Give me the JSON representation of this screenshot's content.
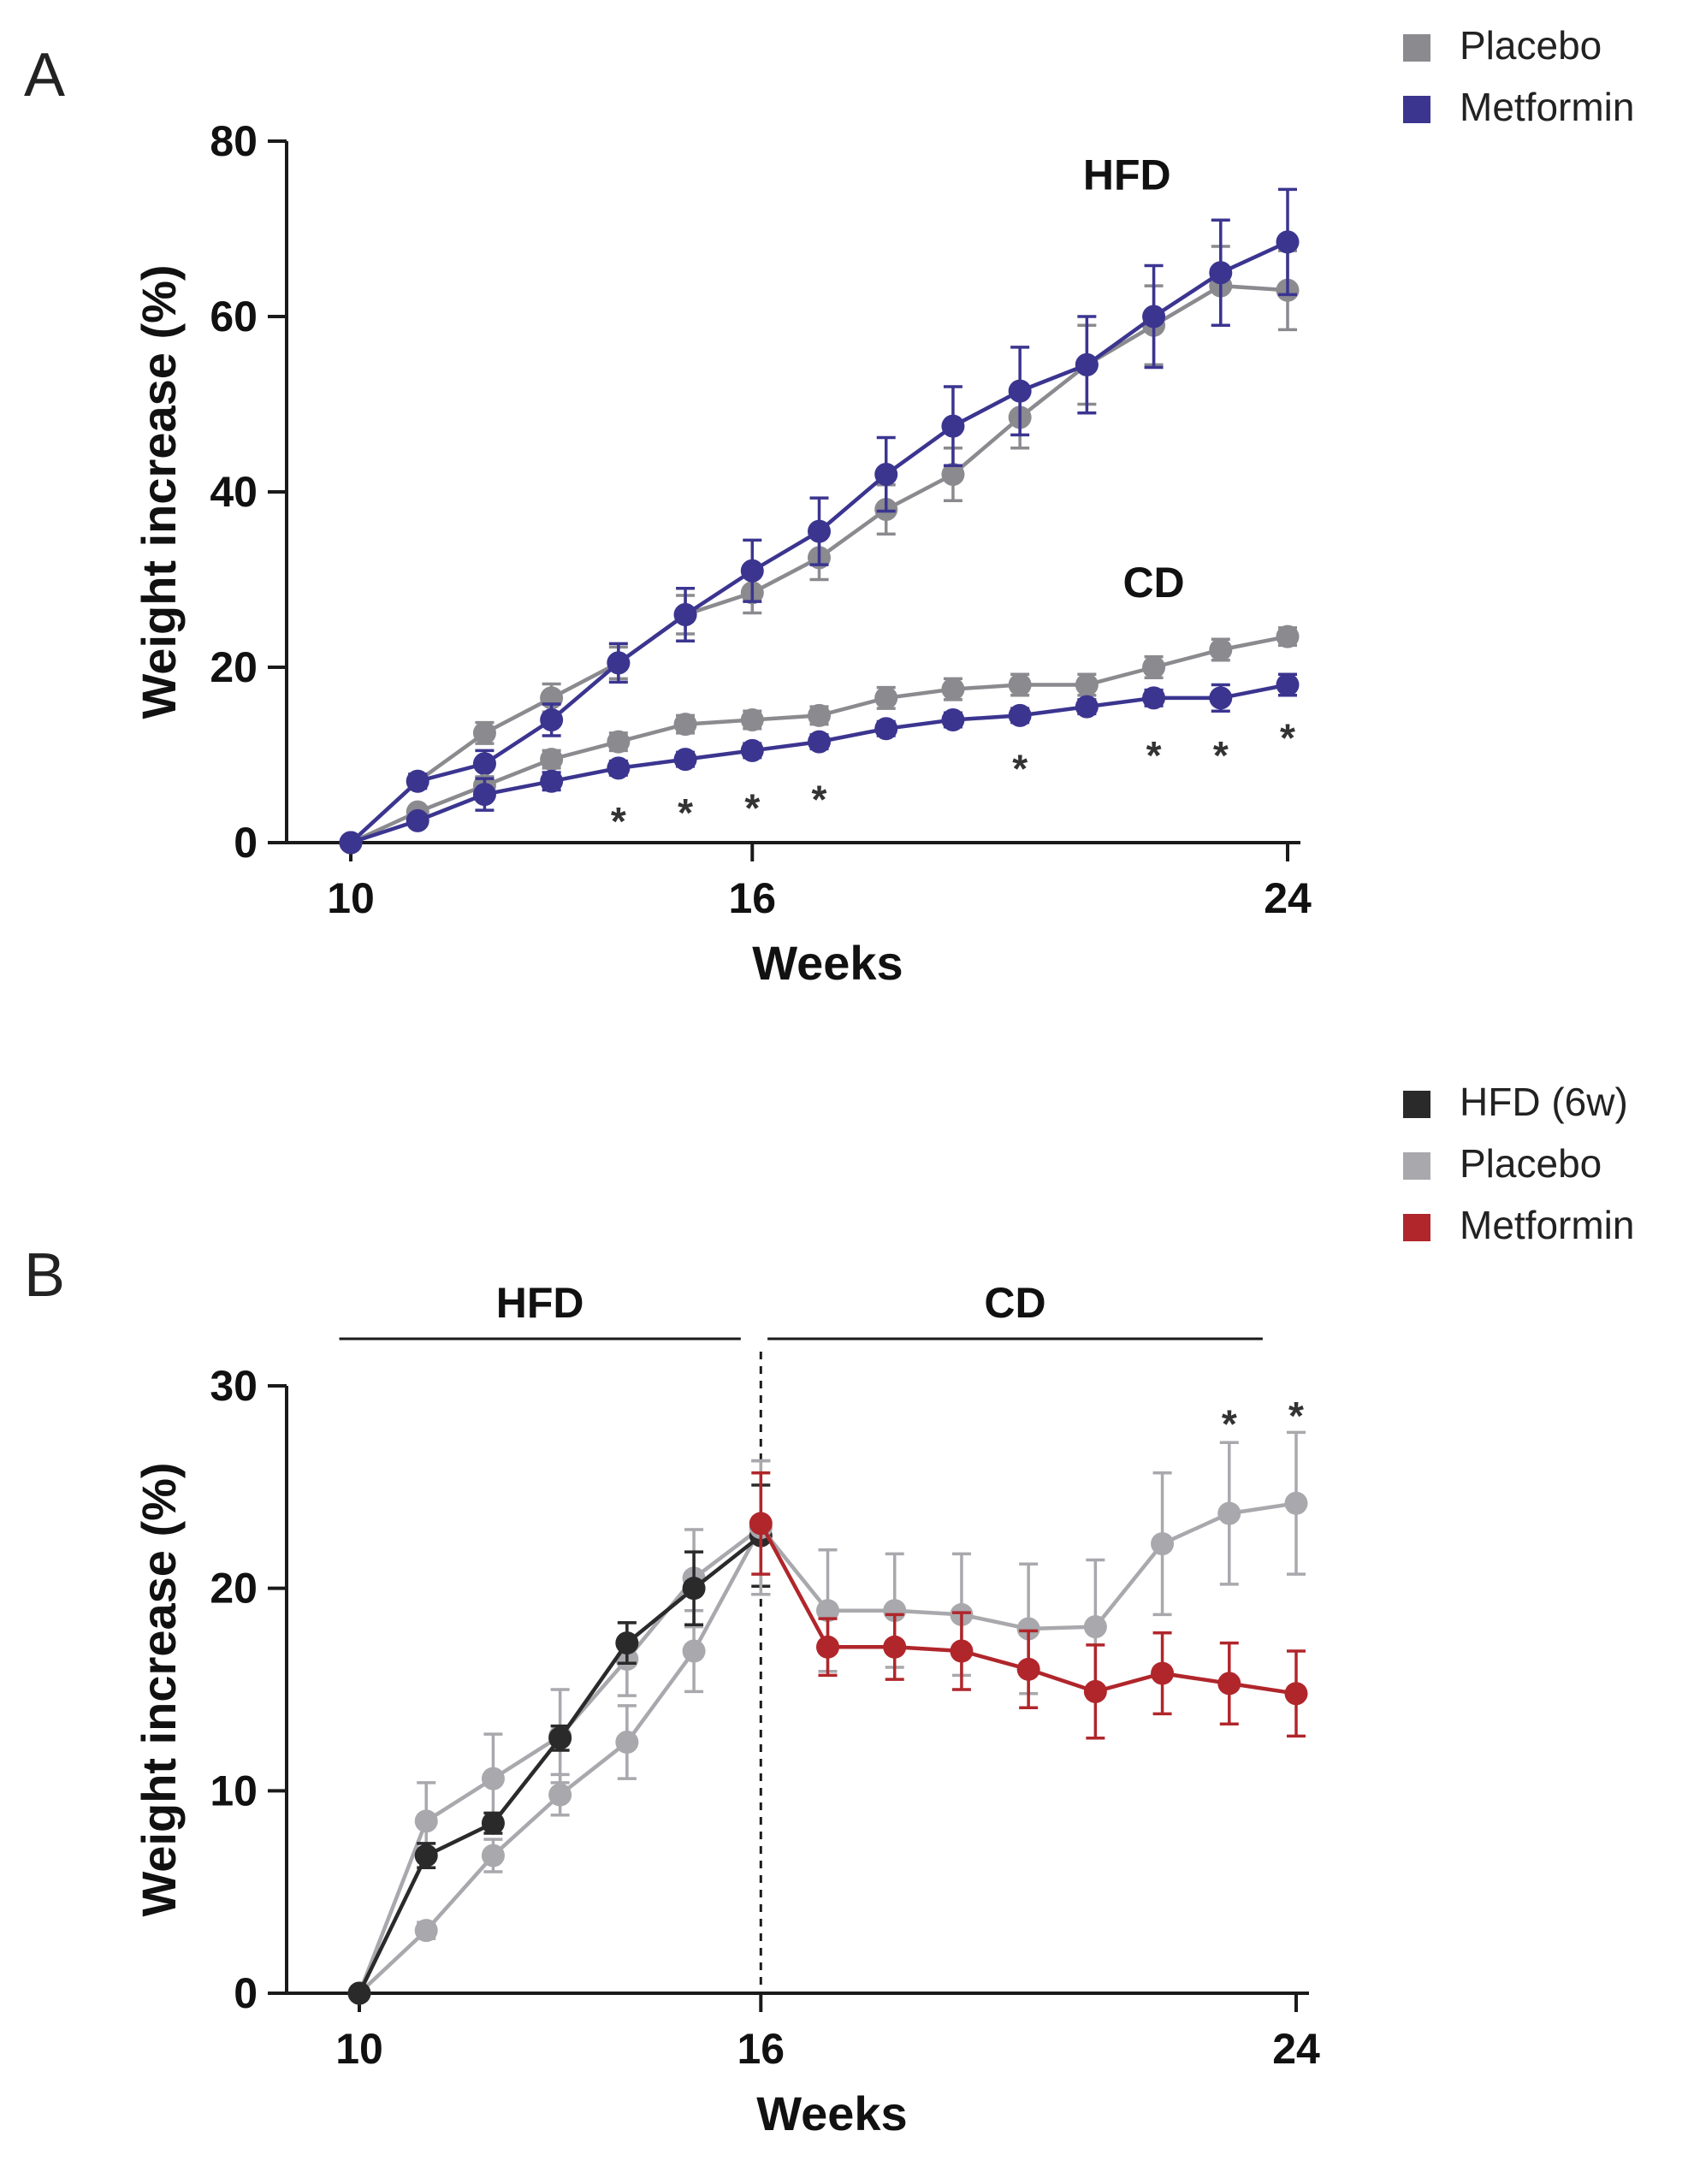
{
  "chart_data": [
    {
      "panel": "A",
      "type": "line",
      "xlabel": "Weeks",
      "ylabel": "Weight increase (%)",
      "xlim": [
        10,
        24
      ],
      "ylim": [
        0,
        80
      ],
      "xticks": [
        "10",
        "16",
        "24"
      ],
      "xtick_values": [
        10,
        16,
        24
      ],
      "yticks": [
        "0",
        "20",
        "40",
        "60",
        "80"
      ],
      "ytick_values": [
        0,
        20,
        40,
        60,
        80
      ],
      "legend": [
        {
          "label": "Placebo",
          "color": "#8a8a8f"
        },
        {
          "label": "Metformin",
          "color": "#3b3590"
        }
      ],
      "annotations": [
        {
          "text": "HFD",
          "x": 21.6,
          "y": 74.5
        },
        {
          "text": "CD",
          "x": 22.0,
          "y": 28.0
        }
      ],
      "significance": [
        {
          "text": "*",
          "x": 14,
          "y": 4.0
        },
        {
          "text": "*",
          "x": 15,
          "y": 5.0
        },
        {
          "text": "*",
          "x": 16,
          "y": 5.5
        },
        {
          "text": "*",
          "x": 17,
          "y": 6.5
        },
        {
          "text": "*",
          "x": 20,
          "y": 10.0
        },
        {
          "text": "*",
          "x": 22,
          "y": 11.5
        },
        {
          "text": "*",
          "x": 23,
          "y": 11.5
        },
        {
          "text": "*",
          "x": 24,
          "y": 13.5
        }
      ],
      "series": [
        {
          "name": "Placebo HFD",
          "group": "Placebo",
          "color": "#8a8a8f",
          "x": [
            10,
            11,
            12,
            13,
            14,
            15,
            16,
            17,
            18,
            19,
            20,
            21,
            22,
            23,
            24
          ],
          "y": [
            0,
            7,
            12.5,
            16.5,
            20.5,
            26,
            28.5,
            32.5,
            38,
            42,
            48.5,
            54.5,
            59,
            63.5,
            63
          ],
          "err": [
            0,
            0.8,
            1.2,
            1.6,
            1.8,
            2.2,
            2.3,
            2.5,
            2.8,
            3.0,
            3.5,
            4.5,
            4.5,
            4.5,
            4.5
          ]
        },
        {
          "name": "Metformin HFD",
          "group": "Metformin",
          "color": "#3b3590",
          "x": [
            10,
            11,
            12,
            13,
            14,
            15,
            16,
            17,
            18,
            19,
            20,
            21,
            22,
            23,
            24
          ],
          "y": [
            0,
            7,
            9,
            14,
            20.5,
            26,
            31,
            35.5,
            42,
            47.5,
            51.5,
            54.5,
            60,
            65,
            68.5
          ],
          "err": [
            0,
            0.8,
            1.5,
            1.8,
            2.2,
            3.0,
            3.5,
            3.8,
            4.2,
            4.5,
            5.0,
            5.5,
            5.8,
            6.0,
            6.0
          ]
        },
        {
          "name": "Placebo CD",
          "group": "Placebo",
          "color": "#8a8a8f",
          "x": [
            10,
            11,
            12,
            13,
            14,
            15,
            16,
            17,
            18,
            19,
            20,
            21,
            22,
            23,
            24
          ],
          "y": [
            0,
            3.5,
            6.5,
            9.5,
            11.5,
            13.5,
            14,
            14.5,
            16.5,
            17.5,
            18,
            18,
            20,
            22,
            23.5
          ],
          "err": [
            0,
            0.6,
            1.0,
            1.0,
            1.0,
            1.0,
            1.0,
            1.0,
            1.2,
            1.2,
            1.2,
            1.2,
            1.2,
            1.2,
            1.0
          ]
        },
        {
          "name": "Metformin CD",
          "group": "Metformin",
          "color": "#3b3590",
          "x": [
            10,
            11,
            12,
            13,
            14,
            15,
            16,
            17,
            18,
            19,
            20,
            21,
            22,
            23,
            24
          ],
          "y": [
            0,
            2.5,
            5.5,
            7,
            8.5,
            9.5,
            10.5,
            11.5,
            13,
            14,
            14.5,
            15.5,
            16.5,
            16.5,
            18
          ],
          "err": [
            0,
            0.6,
            1.8,
            1.0,
            0.8,
            0.8,
            0.8,
            0.8,
            0.8,
            0.8,
            0.8,
            0.8,
            0.9,
            1.5,
            1.2
          ]
        }
      ]
    },
    {
      "panel": "B",
      "type": "line",
      "xlabel": "Weeks",
      "ylabel": "Weight increase (%)",
      "xlim": [
        10,
        24
      ],
      "ylim": [
        0,
        30
      ],
      "xticks": [
        "10",
        "16",
        "24"
      ],
      "xtick_values": [
        10,
        16,
        24
      ],
      "yticks": [
        "0",
        "10",
        "20",
        "30"
      ],
      "ytick_values": [
        0,
        10,
        20,
        30
      ],
      "legend": [
        {
          "label": "HFD (6w)",
          "color": "#2a2a2a"
        },
        {
          "label": "Placebo",
          "color": "#a8a8ad"
        },
        {
          "label": "Metformin",
          "color": "#b0262b"
        }
      ],
      "phase_labels": [
        {
          "text": "HFD",
          "x_start": 9.7,
          "x_end": 15.7
        },
        {
          "text": "CD",
          "x_start": 16.1,
          "x_end": 23.5
        }
      ],
      "divider_x": 16,
      "significance": [
        {
          "text": "*",
          "x": 23,
          "y": 28.8
        },
        {
          "text": "*",
          "x": 24,
          "y": 29.2
        }
      ],
      "series": [
        {
          "name": "Placebo (HFD phase)",
          "group": "Placebo",
          "color": "#a8a8ad",
          "x": [
            10,
            11,
            12,
            13,
            14,
            15,
            16
          ],
          "y": [
            0,
            8.5,
            10.6,
            12.7,
            16.5,
            20.5,
            23
          ],
          "err": [
            0,
            1.9,
            2.2,
            2.3,
            1.8,
            2.4,
            3.3
          ]
        },
        {
          "name": "Placebo (HFD phase, lower)",
          "group": "Placebo",
          "color": "#a8a8ad",
          "x": [
            10,
            11,
            12,
            13,
            14,
            15,
            16
          ],
          "y": [
            0,
            3.1,
            6.8,
            9.8,
            12.4,
            16.9,
            23
          ],
          "err": [
            0,
            0.4,
            0.8,
            1.0,
            1.8,
            2.0,
            3.3
          ]
        },
        {
          "name": "HFD (6w)",
          "group": "HFD (6w)",
          "color": "#2a2a2a",
          "x": [
            10,
            11,
            12,
            13,
            14,
            15,
            16
          ],
          "y": [
            0,
            6.8,
            8.4,
            12.6,
            17.3,
            20.0,
            22.6
          ],
          "err": [
            0,
            0.6,
            0.5,
            0.6,
            1.0,
            1.8,
            2.5
          ]
        },
        {
          "name": "Placebo (CD phase)",
          "group": "Placebo",
          "color": "#a8a8ad",
          "x": [
            16,
            17,
            18,
            19,
            20,
            21,
            22,
            23,
            24
          ],
          "y": [
            23,
            18.9,
            18.9,
            18.7,
            18,
            18.1,
            22.2,
            23.7,
            24.2
          ],
          "err": [
            3.3,
            3.0,
            2.8,
            3.0,
            3.2,
            3.3,
            3.5,
            3.5,
            3.5
          ]
        },
        {
          "name": "Metformin (CD phase)",
          "group": "Metformin",
          "color": "#b0262b",
          "x": [
            16,
            17,
            18,
            19,
            20,
            21,
            22,
            23,
            24
          ],
          "y": [
            23.2,
            17.1,
            17.1,
            16.9,
            16.0,
            14.9,
            15.8,
            15.3,
            14.8
          ],
          "err": [
            2.5,
            1.4,
            1.6,
            1.9,
            1.9,
            2.3,
            2.0,
            2.0,
            2.1
          ]
        }
      ]
    }
  ]
}
